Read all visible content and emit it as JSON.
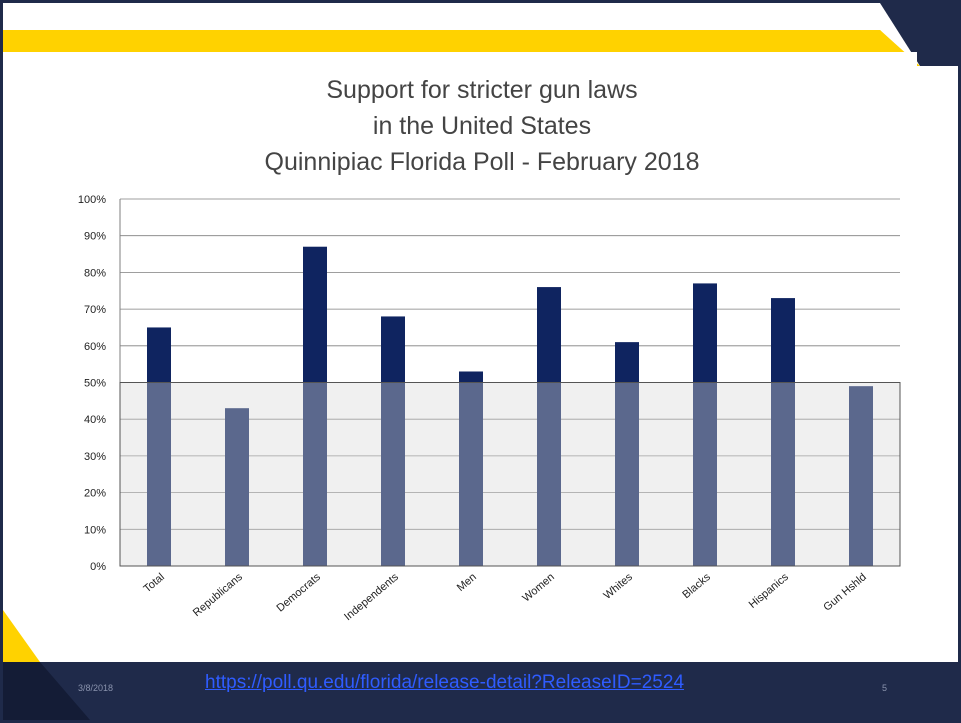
{
  "chart_data": {
    "type": "bar",
    "title_lines": [
      "Support for stricter gun laws",
      "in the United States",
      "Quinnipiac Florida Poll - February 2018"
    ],
    "categories": [
      "Total",
      "Republicans",
      "Democrats",
      "Independents",
      "Men",
      "Women",
      "Whites",
      "Blacks",
      "Hispanics",
      "Gun Hshld"
    ],
    "values": [
      65,
      43,
      87,
      68,
      53,
      76,
      61,
      77,
      73,
      49
    ],
    "ylim": [
      0,
      100
    ],
    "y_ticks": [
      "0%",
      "10%",
      "20%",
      "30%",
      "40%",
      "50%",
      "60%",
      "70%",
      "80%",
      "90%",
      "100%"
    ],
    "highlight_band_below": 50,
    "grid": true,
    "colors": {
      "bar": "#0f2460",
      "bar_shaded": "#5e6f91",
      "band": "#d8d8d8"
    }
  },
  "footer": {
    "date": "3/8/2018",
    "link": "https://poll.qu.edu/florida/release-detail?ReleaseID=2524",
    "page": "5"
  },
  "theme": {
    "accent": "#ffd200",
    "dark": "#1f2a4a",
    "panel": "#ffffff"
  }
}
